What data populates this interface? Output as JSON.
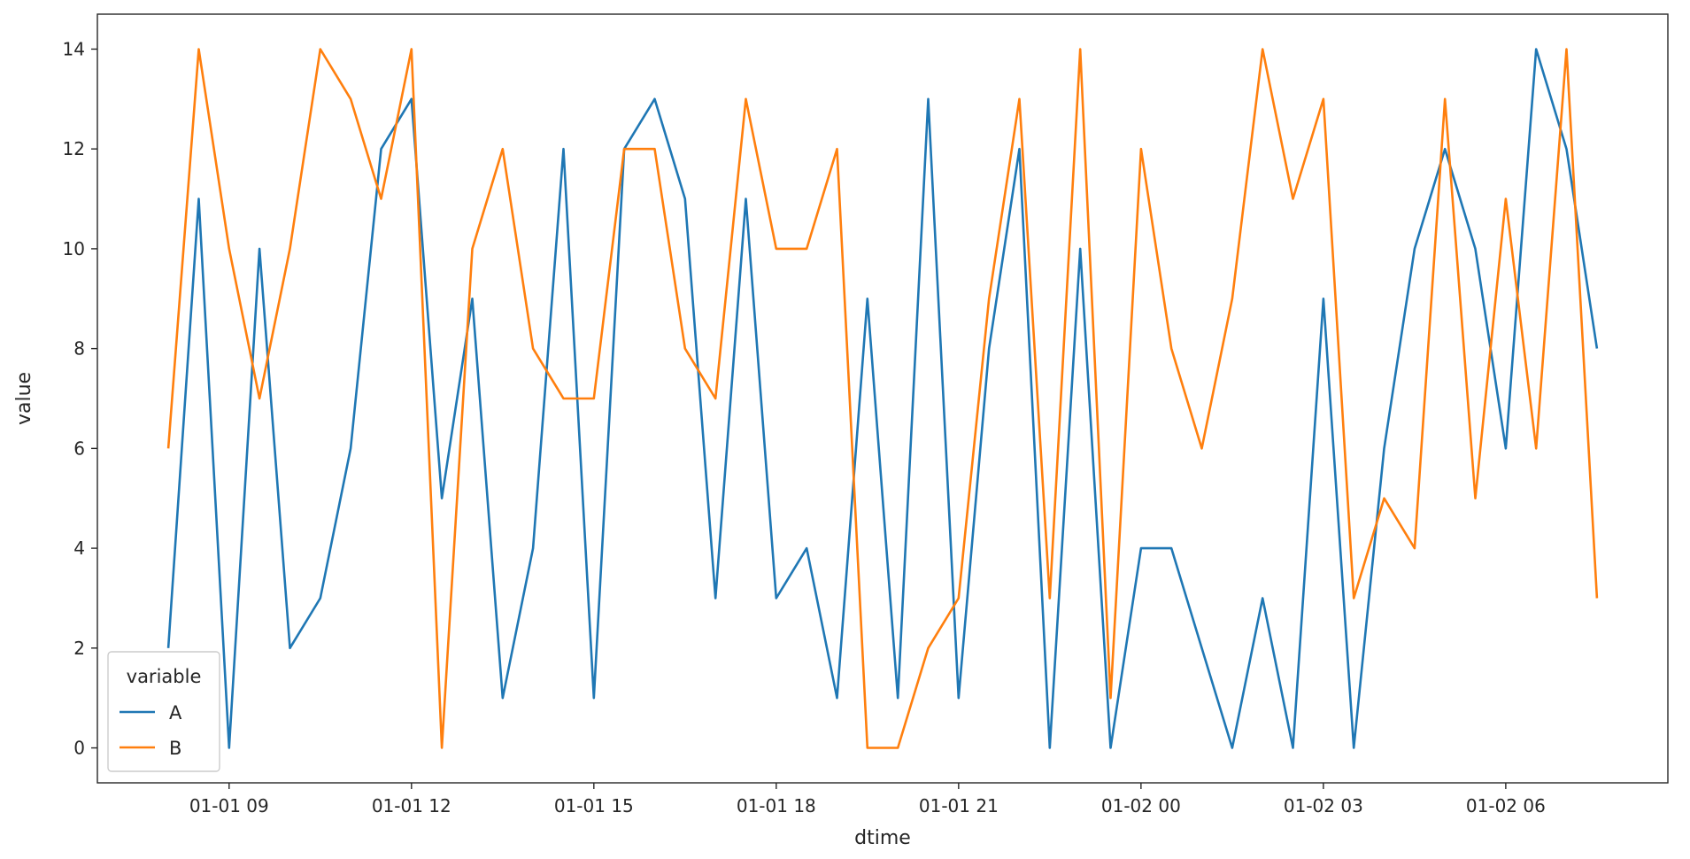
{
  "chart_data": {
    "type": "line",
    "xlabel": "dtime",
    "ylabel": "value",
    "x": [
      "2021-01-01 08:00",
      "2021-01-01 08:30",
      "2021-01-01 09:00",
      "2021-01-01 09:30",
      "2021-01-01 10:00",
      "2021-01-01 10:30",
      "2021-01-01 11:00",
      "2021-01-01 11:30",
      "2021-01-01 12:00",
      "2021-01-01 12:30",
      "2021-01-01 13:00",
      "2021-01-01 13:30",
      "2021-01-01 14:00",
      "2021-01-01 14:30",
      "2021-01-01 15:00",
      "2021-01-01 15:30",
      "2021-01-01 16:00",
      "2021-01-01 16:30",
      "2021-01-01 17:00",
      "2021-01-01 17:30",
      "2021-01-01 18:00",
      "2021-01-01 18:30",
      "2021-01-01 19:00",
      "2021-01-01 19:30",
      "2021-01-01 20:00",
      "2021-01-01 20:30",
      "2021-01-01 21:00",
      "2021-01-01 21:30",
      "2021-01-01 22:00",
      "2021-01-01 22:30",
      "2021-01-01 23:00",
      "2021-01-01 23:30",
      "2021-01-02 00:00",
      "2021-01-02 00:30",
      "2021-01-02 01:00",
      "2021-01-02 01:30",
      "2021-01-02 02:00",
      "2021-01-02 02:30",
      "2021-01-02 03:00",
      "2021-01-02 03:30",
      "2021-01-02 04:00",
      "2021-01-02 04:30",
      "2021-01-02 05:00",
      "2021-01-02 05:30",
      "2021-01-02 06:00",
      "2021-01-02 06:30",
      "2021-01-02 07:00",
      "2021-01-02 07:30"
    ],
    "series": [
      {
        "name": "A",
        "color": "#1f77b4",
        "values": [
          2,
          11,
          0,
          10,
          2,
          3,
          6,
          12,
          13,
          5,
          9,
          1,
          4,
          12,
          1,
          12,
          13,
          11,
          3,
          11,
          3,
          4,
          1,
          9,
          1,
          13,
          1,
          8,
          12,
          0,
          10,
          0,
          4,
          4,
          2,
          0,
          3,
          0,
          9,
          0,
          6,
          10,
          12,
          10,
          6,
          14,
          12,
          8
        ]
      },
      {
        "name": "B",
        "color": "#ff7f0e",
        "values": [
          6,
          14,
          10,
          7,
          10,
          14,
          13,
          11,
          14,
          0,
          10,
          12,
          8,
          7,
          7,
          12,
          12,
          8,
          7,
          13,
          10,
          10,
          12,
          0,
          0,
          2,
          3,
          9,
          13,
          3,
          14,
          1,
          12,
          8,
          6,
          9,
          14,
          11,
          13,
          3,
          5,
          4,
          13,
          5,
          11,
          6,
          14,
          3
        ]
      }
    ],
    "xticks": [
      {
        "t": "2021-01-01 09:00",
        "label": "01-01 09"
      },
      {
        "t": "2021-01-01 12:00",
        "label": "01-01 12"
      },
      {
        "t": "2021-01-01 15:00",
        "label": "01-01 15"
      },
      {
        "t": "2021-01-01 18:00",
        "label": "01-01 18"
      },
      {
        "t": "2021-01-01 21:00",
        "label": "01-01 21"
      },
      {
        "t": "2021-01-02 00:00",
        "label": "01-02 00"
      },
      {
        "t": "2021-01-02 03:00",
        "label": "01-02 03"
      },
      {
        "t": "2021-01-02 06:00",
        "label": "01-02 06"
      }
    ],
    "yticks": [
      0,
      2,
      4,
      6,
      8,
      10,
      12,
      14
    ],
    "xlim": [
      "2021-01-01 06:50",
      "2021-01-02 08:40"
    ],
    "ylim": [
      -0.7,
      14.7
    ],
    "grid": false,
    "legend": {
      "title": "variable",
      "placement": "lower-left",
      "entries": [
        "A",
        "B"
      ]
    }
  }
}
